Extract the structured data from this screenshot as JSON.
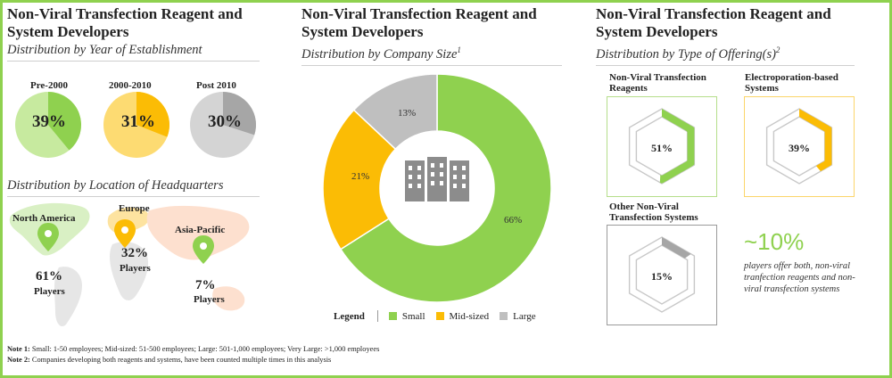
{
  "panel1": {
    "title": "Non-Viral Transfection Reagent and System Developers",
    "subtitle": "Distribution by Year of Establishment",
    "location_subtitle": "Distribution by Location of Headquarters"
  },
  "panel2": {
    "title": "Non-Viral Transfection Reagent and System Developers",
    "subtitle": "Distribution by Company Size",
    "subtitle_sup": "1",
    "legend_title": "Legend"
  },
  "panel3": {
    "title": "Non-Viral Transfection Reagent and System Developers",
    "subtitle": "Distribution by Type of Offering(s)",
    "subtitle_sup": "2",
    "callout_value": "~10%",
    "callout_text": "players offer both, non-viral tranfection reagents and non-viral transfection systems"
  },
  "notes": {
    "note1_label": "Note 1:",
    "note1_text": " Small: 1-50 employees; Mid-sized: 51-500 employees; Large: 501-1,000 employees; Very Large: >1,000 employees",
    "note2_label": "Note 2:",
    "note2_text": " Companies developing both reagents and systems, have been counted multiple times in this analysis"
  },
  "colors": {
    "green": "#8fd14f",
    "light_green": "#c7ea9f",
    "amber": "#fbbc05",
    "light_amber": "#fddb72",
    "grey": "#a6a6a6",
    "light_grey": "#d4d4d4",
    "donut_grey": "#bfbfbf"
  },
  "chart_data": [
    {
      "type": "pie",
      "title": "Distribution by Year of Establishment",
      "charts": [
        {
          "label": "Pre-2000",
          "value": 39,
          "display": "39%"
        },
        {
          "label": "2000-2010",
          "value": 31,
          "display": "31%"
        },
        {
          "label": "Post 2010",
          "value": 30,
          "display": "30%"
        }
      ]
    },
    {
      "type": "pie",
      "title": "Distribution by Location of Headquarters",
      "regions": [
        {
          "label": "North America",
          "value": 61,
          "display": "61%",
          "unit": "Players"
        },
        {
          "label": "Europe",
          "value": 32,
          "display": "32%",
          "unit": "Players"
        },
        {
          "label": "Asia-Pacific",
          "value": 7,
          "display": "7%",
          "unit": "Players"
        }
      ]
    },
    {
      "type": "pie",
      "title": "Distribution by Company Size",
      "categories": [
        "Small",
        "Mid-sized",
        "Large"
      ],
      "values": [
        66,
        21,
        13
      ],
      "labels": [
        "66%",
        "21%",
        "13%"
      ]
    },
    {
      "type": "pie",
      "title": "Distribution by Type of Offering(s)",
      "categories": [
        "Non-Viral Transfection Reagents",
        "Electroporation-based Systems",
        "Other Non-Viral Transfection Systems"
      ],
      "values": [
        51,
        39,
        15
      ],
      "labels": [
        "51%",
        "39%",
        "15%"
      ]
    }
  ]
}
